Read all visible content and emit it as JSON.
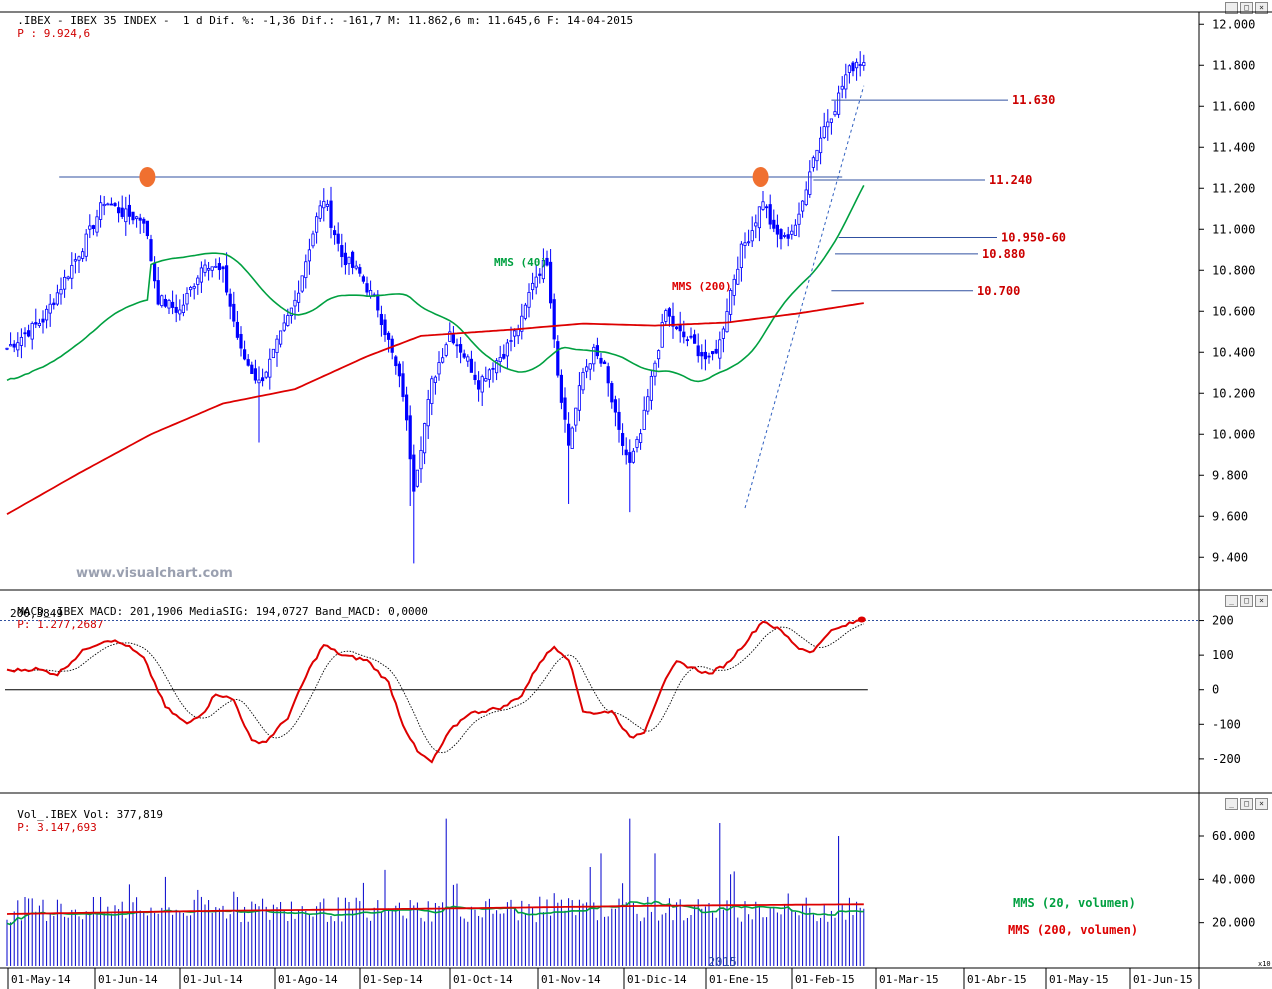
{
  "header": {
    "price_info": ".IBEX - IBEX 35 INDEX -  1 d Dif. %: -1,36 Dif.: -161,7 M: 11.862,6 m: 11.645,6 F: 14-04-2015",
    "price_p": "P : 9.924,6",
    "macd_info": "MACD_.IBEX MACD: 201,1906 MediaSIG: 194,0727 Band_MACD: 0,0000",
    "macd_p": "P: 1.277,2687",
    "macd_level": "200,3849",
    "vol_info": "Vol_.IBEX Vol: 377,819",
    "vol_p": "P: 3.147,693",
    "watermark": "www.visualchart.com",
    "x10": "x10"
  },
  "colors": {
    "up": "#0000ff",
    "mms40": "#00a040",
    "mms200": "#dd0000",
    "level": "#cc0000",
    "signal": "#000000",
    "macd": "#dd0000",
    "vol": "#0000cc",
    "vol20": "#00a040"
  },
  "chart_data": [
    {
      "type": "candlestick",
      "ylim": [
        9250,
        12050
      ],
      "y_ticks": [
        "12.000",
        "11.800",
        "11.600",
        "11.400",
        "11.200",
        "11.000",
        "10.800",
        "10.600",
        "10.400",
        "10.200",
        "10.000",
        "9.800",
        "9.600",
        "9.400"
      ],
      "y_tick_values": [
        12000,
        11800,
        11600,
        11400,
        11200,
        11000,
        10800,
        10600,
        10400,
        10200,
        10000,
        9800,
        9600,
        9400
      ],
      "x_ticks": [
        "01-May-14",
        "01-Jun-14",
        "01-Jul-14",
        "01-Ago-14",
        "01-Sep-14",
        "01-Oct-14",
        "01-Nov-14",
        "01-Dic-14",
        "01-Ene-15",
        "01-Feb-15",
        "01-Mar-15",
        "01-Abr-15",
        "01-May-15",
        "01-Jun-15"
      ],
      "year_label": "2015",
      "price_anchors_day_close": [
        [
          0,
          10420
        ],
        [
          10,
          10560
        ],
        [
          22,
          10950
        ],
        [
          27,
          11140
        ],
        [
          33,
          11070
        ],
        [
          38,
          11050
        ],
        [
          42,
          10660
        ],
        [
          48,
          10600
        ],
        [
          55,
          10850
        ],
        [
          60,
          10780
        ],
        [
          65,
          10400
        ],
        [
          70,
          10250
        ],
        [
          73,
          10350
        ],
        [
          80,
          10650
        ],
        [
          86,
          11050
        ],
        [
          88,
          11150
        ],
        [
          93,
          10870
        ],
        [
          98,
          10780
        ],
        [
          103,
          10620
        ],
        [
          106,
          10450
        ],
        [
          110,
          10200
        ],
        [
          113,
          9750
        ],
        [
          118,
          10250
        ],
        [
          123,
          10500
        ],
        [
          128,
          10360
        ],
        [
          131,
          10250
        ],
        [
          134,
          10320
        ],
        [
          138,
          10400
        ],
        [
          143,
          10550
        ],
        [
          146,
          10750
        ],
        [
          150,
          10850
        ],
        [
          153,
          10300
        ],
        [
          156,
          9950
        ],
        [
          160,
          10300
        ],
        [
          163,
          10400
        ],
        [
          166,
          10320
        ],
        [
          170,
          10000
        ],
        [
          173,
          9850
        ],
        [
          176,
          10000
        ],
        [
          180,
          10350
        ],
        [
          183,
          10600
        ],
        [
          186,
          10500
        ],
        [
          190,
          10450
        ],
        [
          195,
          10350
        ],
        [
          198,
          10450
        ],
        [
          201,
          10700
        ],
        [
          204,
          10900
        ],
        [
          207,
          11000
        ],
        [
          210,
          11150
        ],
        [
          213,
          10980
        ],
        [
          216,
          10950
        ],
        [
          220,
          11050
        ],
        [
          223,
          11300
        ],
        [
          227,
          11500
        ],
        [
          230,
          11600
        ],
        [
          233,
          11750
        ],
        [
          236,
          11820
        ],
        [
          238,
          11820
        ]
      ],
      "annotations": [
        {
          "label": "MMS (40)",
          "series": "mms40"
        },
        {
          "label": "MMS (200)",
          "series": "mms200"
        },
        {
          "label": "11.630",
          "value": 11630
        },
        {
          "label": "11.240",
          "value": 11240
        },
        {
          "label": "10.950-60",
          "value": 10960
        },
        {
          "label": "10.880",
          "value": 10880
        },
        {
          "label": "10.700",
          "value": 10700
        }
      ],
      "resistance": 11255,
      "trendline": {
        "from": [
          9640,
          "01-Ene-15"
        ],
        "to": [
          11700,
          "14-04-2015"
        ]
      }
    },
    {
      "type": "line",
      "name": "MACD",
      "ylim": [
        -290,
        245
      ],
      "y_ticks": [
        "200",
        "100",
        "0",
        "-100",
        "-200"
      ],
      "y_tick_values": [
        200,
        100,
        0,
        -100,
        -200
      ],
      "anchors": [
        [
          0,
          55
        ],
        [
          8,
          60
        ],
        [
          14,
          45
        ],
        [
          22,
          120
        ],
        [
          28,
          145
        ],
        [
          33,
          130
        ],
        [
          38,
          90
        ],
        [
          44,
          -50
        ],
        [
          50,
          -100
        ],
        [
          55,
          -60
        ],
        [
          58,
          -10
        ],
        [
          63,
          -30
        ],
        [
          68,
          -150
        ],
        [
          72,
          -150
        ],
        [
          78,
          -80
        ],
        [
          84,
          60
        ],
        [
          88,
          130
        ],
        [
          93,
          100
        ],
        [
          100,
          85
        ],
        [
          106,
          20
        ],
        [
          110,
          -100
        ],
        [
          114,
          -180
        ],
        [
          118,
          -210
        ],
        [
          123,
          -120
        ],
        [
          128,
          -70
        ],
        [
          133,
          -60
        ],
        [
          138,
          -50
        ],
        [
          143,
          -15
        ],
        [
          148,
          80
        ],
        [
          152,
          125
        ],
        [
          156,
          90
        ],
        [
          160,
          -60
        ],
        [
          164,
          -70
        ],
        [
          168,
          -60
        ],
        [
          173,
          -140
        ],
        [
          177,
          -120
        ],
        [
          182,
          10
        ],
        [
          186,
          80
        ],
        [
          190,
          65
        ],
        [
          195,
          45
        ],
        [
          200,
          75
        ],
        [
          205,
          135
        ],
        [
          210,
          200
        ],
        [
          215,
          170
        ],
        [
          220,
          120
        ],
        [
          224,
          110
        ],
        [
          228,
          165
        ],
        [
          234,
          190
        ],
        [
          238,
          205
        ]
      ],
      "signal_lag": 4,
      "zero": 0
    },
    {
      "type": "bar",
      "name": "Vol",
      "ylim": [
        0,
        72000
      ],
      "y_ticks": [
        "60.000",
        "40.000",
        "20.000"
      ],
      "y_tick_values": [
        60000,
        40000,
        20000
      ],
      "series": [
        {
          "name": "MMS (20, volumen)",
          "label": "MMS (20, volumen)"
        },
        {
          "name": "MMS (200, volumen)",
          "label": "MMS (200, volumen)"
        }
      ]
    }
  ]
}
